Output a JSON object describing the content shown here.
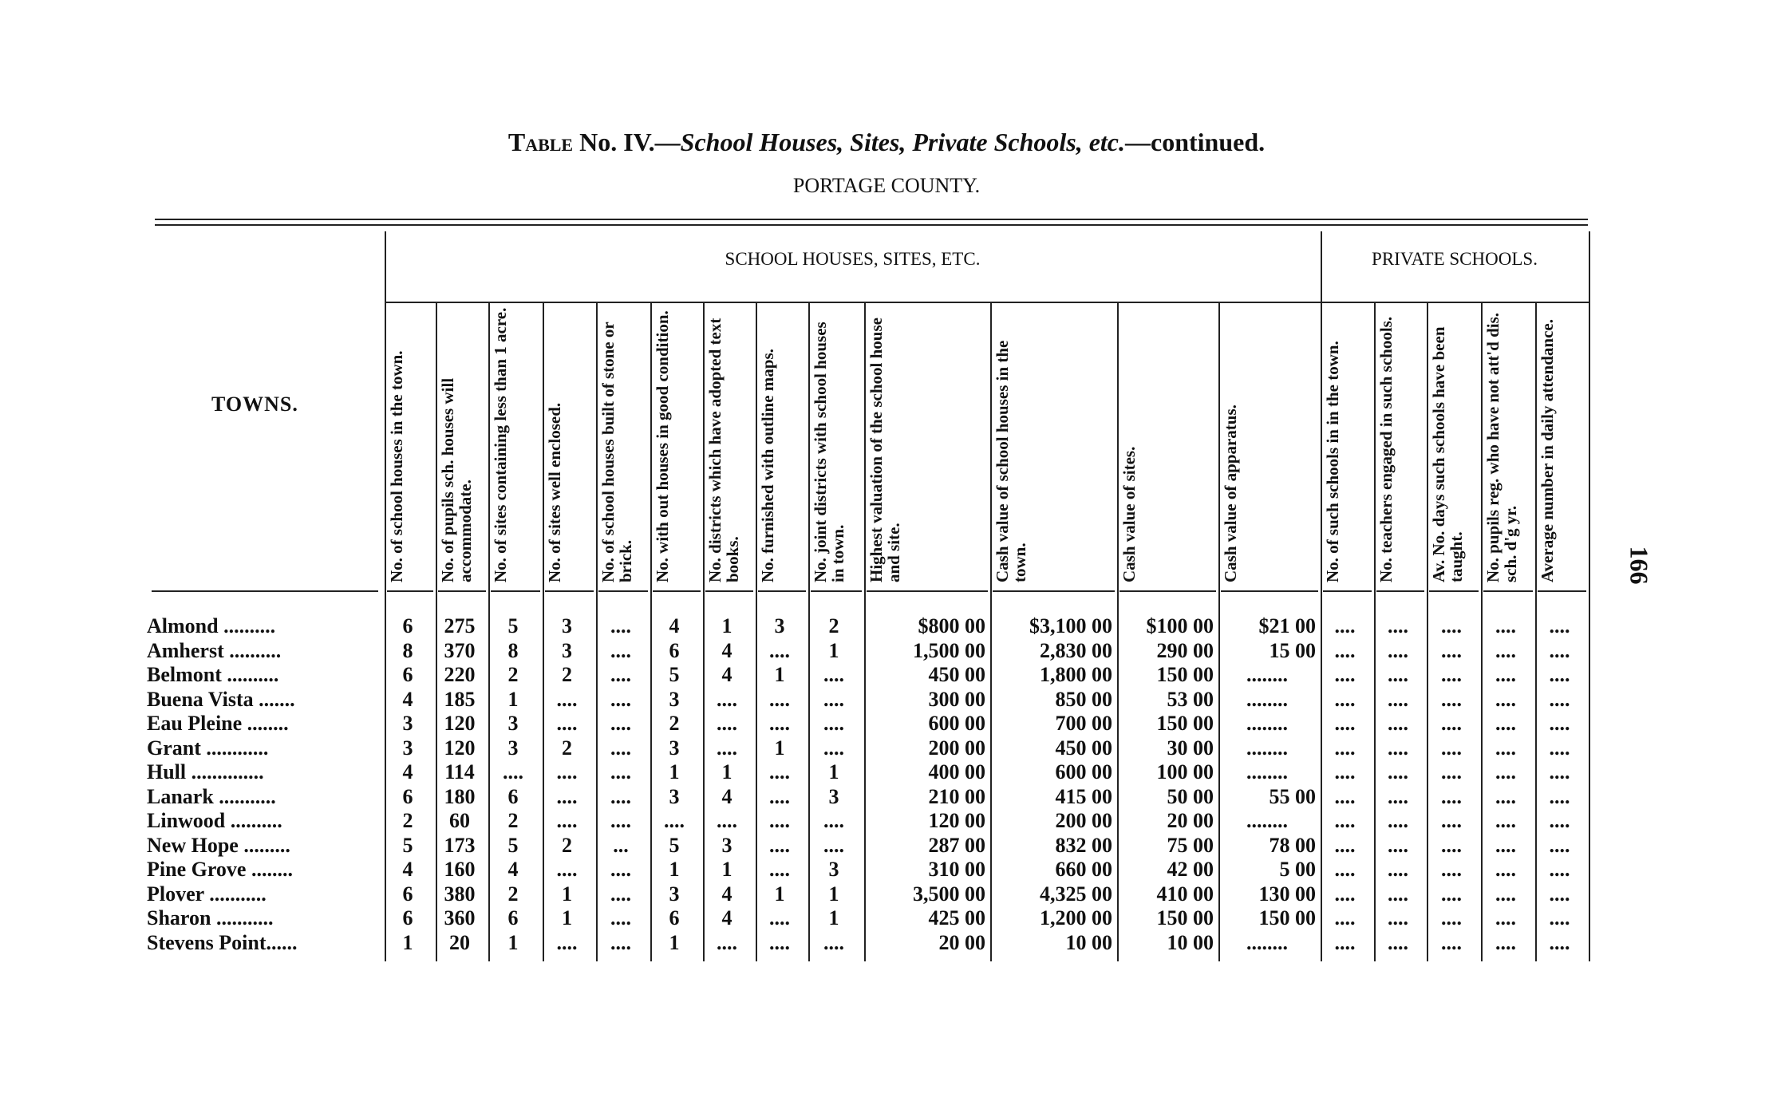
{
  "title": {
    "prefix": "Table",
    "number": "No. IV.—",
    "italic": "School Houses, Sites, Private Schools, etc.",
    "suffix": "—continued."
  },
  "county": "PORTAGE COUNTY.",
  "page_number": "166",
  "groups": {
    "school_houses": "SCHOOL HOUSES, SITES, ETC.",
    "private_schools": "PRIVATE SCHOOLS."
  },
  "towns_header": "TOWNS.",
  "columns": [
    "No. of school houses in the town.",
    "No. of pupils sch. houses will accommodate.",
    "No. of sites containing less than 1 acre.",
    "No. of sites well enclosed.",
    "No. of school houses built of stone or brick.",
    "No. with out houses in good condition.",
    "No. districts which have adopted text books.",
    "No. furnished with outline maps.",
    "No. joint districts with school houses in town.",
    "Highest valuation of the school house and site.",
    "Cash value of school houses in the town.",
    "Cash value of sites.",
    "Cash value of apparatus.",
    "No. of such schools in in the town.",
    "No. teachers engaged in such schools.",
    "Av. No. days such schools have been taught.",
    "No. pupils reg. who have not att'd dis. sch. d'g yr.",
    "Average number in daily attendance."
  ],
  "rows": [
    {
      "town": "Almond ..........",
      "values": [
        "6",
        "275",
        "5",
        "3",
        "....",
        "4",
        "1",
        "3",
        "2",
        "$800 00",
        "$3,100 00",
        "$100 00",
        "$21 00",
        "....",
        "....",
        "....",
        "....",
        "...."
      ]
    },
    {
      "town": "Amherst ..........",
      "values": [
        "8",
        "370",
        "8",
        "3",
        "....",
        "6",
        "4",
        "....",
        "1",
        "1,500 00",
        "2,830 00",
        "290 00",
        "15 00",
        "....",
        "....",
        "....",
        "....",
        "...."
      ]
    },
    {
      "town": "Belmont ..........",
      "values": [
        "6",
        "220",
        "2",
        "2",
        "....",
        "5",
        "4",
        "1",
        "....",
        "450 00",
        "1,800 00",
        "150 00",
        "........",
        "....",
        "....",
        "....",
        "....",
        "...."
      ]
    },
    {
      "town": "Buena Vista .......",
      "values": [
        "4",
        "185",
        "1",
        "....",
        "....",
        "3",
        "....",
        "....",
        "....",
        "300 00",
        "850 00",
        "53 00",
        "........",
        "....",
        "....",
        "....",
        "....",
        "...."
      ]
    },
    {
      "town": "Eau Pleine ........",
      "values": [
        "3",
        "120",
        "3",
        "....",
        "....",
        "2",
        "....",
        "....",
        "....",
        "600 00",
        "700 00",
        "150 00",
        "........",
        "....",
        "....",
        "....",
        "....",
        "...."
      ]
    },
    {
      "town": "Grant ............",
      "values": [
        "3",
        "120",
        "3",
        "2",
        "....",
        "3",
        "....",
        "1",
        "....",
        "200 00",
        "450 00",
        "30 00",
        "........",
        "....",
        "....",
        "....",
        "....",
        "...."
      ]
    },
    {
      "town": "Hull ..............",
      "values": [
        "4",
        "114",
        "....",
        "....",
        "....",
        "1",
        "1",
        "....",
        "1",
        "400 00",
        "600 00",
        "100 00",
        "........",
        "....",
        "....",
        "....",
        "....",
        "...."
      ]
    },
    {
      "town": "Lanark ...........",
      "values": [
        "6",
        "180",
        "6",
        "....",
        "....",
        "3",
        "4",
        "....",
        "3",
        "210 00",
        "415 00",
        "50 00",
        "55 00",
        "....",
        "....",
        "....",
        "....",
        "...."
      ]
    },
    {
      "town": "Linwood ..........",
      "values": [
        "2",
        "60",
        "2",
        "....",
        "....",
        "....",
        "....",
        "....",
        "....",
        "120 00",
        "200 00",
        "20 00",
        "........",
        "....",
        "....",
        "....",
        "....",
        "...."
      ]
    },
    {
      "town": "New Hope .........",
      "values": [
        "5",
        "173",
        "5",
        "2",
        "...",
        "5",
        "3",
        "....",
        "....",
        "287 00",
        "832 00",
        "75 00",
        "78 00",
        "....",
        "....",
        "....",
        "....",
        "...."
      ]
    },
    {
      "town": "Pine Grove ........",
      "values": [
        "4",
        "160",
        "4",
        "....",
        "....",
        "1",
        "1",
        "....",
        "3",
        "310 00",
        "660 00",
        "42 00",
        "5 00",
        "....",
        "....",
        "....",
        "....",
        "...."
      ]
    },
    {
      "town": "Plover ...........",
      "values": [
        "6",
        "380",
        "2",
        "1",
        "....",
        "3",
        "4",
        "1",
        "1",
        "3,500 00",
        "4,325 00",
        "410 00",
        "130 00",
        "....",
        "....",
        "....",
        "....",
        "...."
      ]
    },
    {
      "town": "Sharon ...........",
      "values": [
        "6",
        "360",
        "6",
        "1",
        "....",
        "6",
        "4",
        "....",
        "1",
        "425 00",
        "1,200 00",
        "150 00",
        "150 00",
        "....",
        "....",
        "....",
        "....",
        "...."
      ]
    },
    {
      "town": "Stevens Point......",
      "values": [
        "1",
        "20",
        "1",
        "....",
        "....",
        "1",
        "....",
        "....",
        "....",
        "20 00",
        "10 00",
        "10 00",
        "........",
        "....",
        "....",
        "....",
        "....",
        "...."
      ]
    }
  ]
}
